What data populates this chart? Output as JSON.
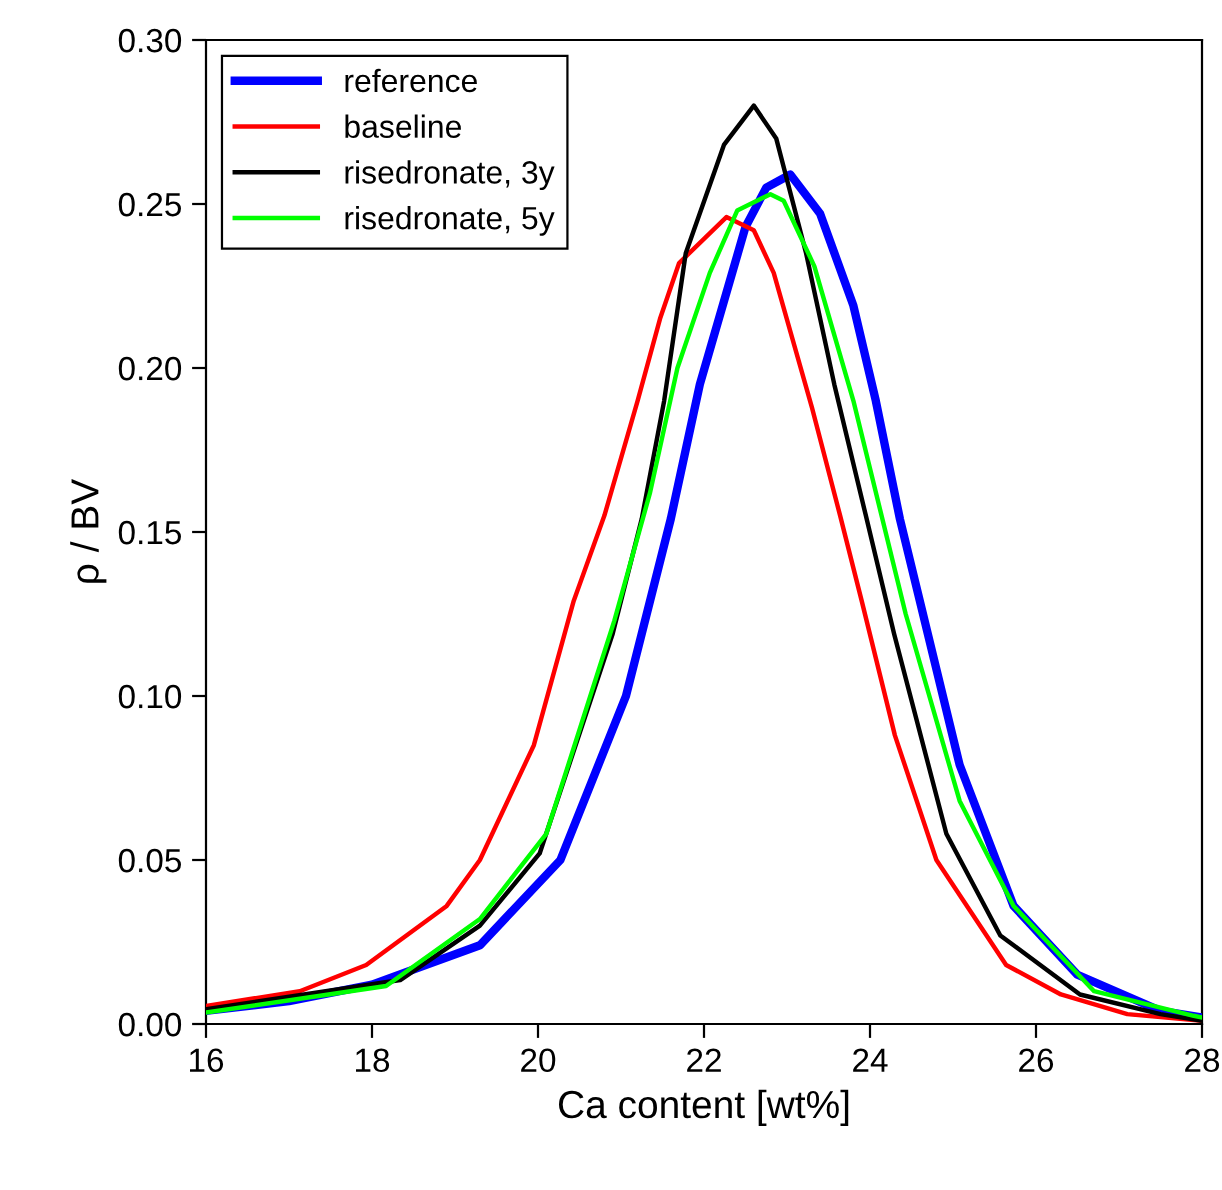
{
  "chart_data": {
    "type": "line",
    "xlabel": "Ca content [wt%]",
    "ylabel": "ρ / BV",
    "xlim": [
      16,
      28
    ],
    "xticks": [
      16,
      18,
      20,
      22,
      24,
      26,
      28
    ],
    "ylim": [
      0,
      0.3
    ],
    "yticks": [
      {
        "value": 0,
        "label": "0.00"
      },
      {
        "value": 0.05,
        "label": "0.05"
      },
      {
        "value": 0.1,
        "label": "0.10"
      },
      {
        "value": 0.15,
        "label": "0.15"
      },
      {
        "value": 0.2,
        "label": "0.20"
      },
      {
        "value": 0.25,
        "label": "0.25"
      },
      {
        "value": 0.3,
        "label": "0.30"
      }
    ],
    "grid": false,
    "legend": "top left",
    "marker": "none",
    "line_style": "solid",
    "series": [
      {
        "name": "reference",
        "color": "#0000ff",
        "x": [
          16,
          17,
          18,
          19.3,
          20.27,
          21.06,
          21.6,
          21.95,
          22.5,
          22.75,
          23.04,
          23.4,
          23.8,
          24.07,
          24.36,
          24.6,
          25.08,
          25.73,
          26.5,
          27.5,
          28
        ],
        "values": [
          0.004,
          0.007,
          0.012,
          0.024,
          0.05,
          0.1,
          0.154,
          0.195,
          0.243,
          0.255,
          0.259,
          0.247,
          0.219,
          0.19,
          0.154,
          0.129,
          0.079,
          0.036,
          0.015,
          0.004,
          0.002
        ]
      },
      {
        "name": "baseline",
        "color": "#ff0000",
        "x": [
          16,
          17.13,
          17.93,
          18.9,
          19.3,
          19.95,
          20.43,
          20.8,
          21.2,
          21.47,
          21.7,
          22.27,
          22.6,
          22.84,
          23.3,
          23.64,
          23.9,
          24.3,
          24.8,
          25.64,
          26.3,
          27.1,
          28
        ],
        "values": [
          0.0055,
          0.01,
          0.018,
          0.036,
          0.05,
          0.085,
          0.129,
          0.155,
          0.19,
          0.215,
          0.232,
          0.246,
          0.242,
          0.229,
          0.188,
          0.155,
          0.129,
          0.088,
          0.05,
          0.018,
          0.009,
          0.003,
          0.001
        ]
      },
      {
        "name": "risedronate, 3y",
        "color": "#000000",
        "x": [
          16,
          18.34,
          19.3,
          20.02,
          20.9,
          21.25,
          21.52,
          21.78,
          22.24,
          22.6,
          22.87,
          23.23,
          23.57,
          23.95,
          24.29,
          24.92,
          25.57,
          26.53,
          27.5,
          28
        ],
        "values": [
          0.0045,
          0.0134,
          0.03,
          0.052,
          0.119,
          0.154,
          0.19,
          0.235,
          0.268,
          0.28,
          0.27,
          0.235,
          0.195,
          0.155,
          0.119,
          0.058,
          0.027,
          0.009,
          0.003,
          0.001
        ]
      },
      {
        "name": "risedronate, 5y",
        "color": "#00ff00",
        "x": [
          16,
          18.17,
          19.3,
          20.1,
          20.92,
          21.35,
          21.68,
          22.07,
          22.4,
          22.8,
          22.96,
          23.33,
          23.8,
          24.43,
          25.08,
          25.73,
          26.7,
          27.9,
          28
        ],
        "values": [
          0.0035,
          0.0116,
          0.032,
          0.058,
          0.123,
          0.162,
          0.2,
          0.229,
          0.248,
          0.253,
          0.251,
          0.231,
          0.19,
          0.125,
          0.068,
          0.036,
          0.01,
          0.0025,
          0.002
        ]
      }
    ]
  }
}
